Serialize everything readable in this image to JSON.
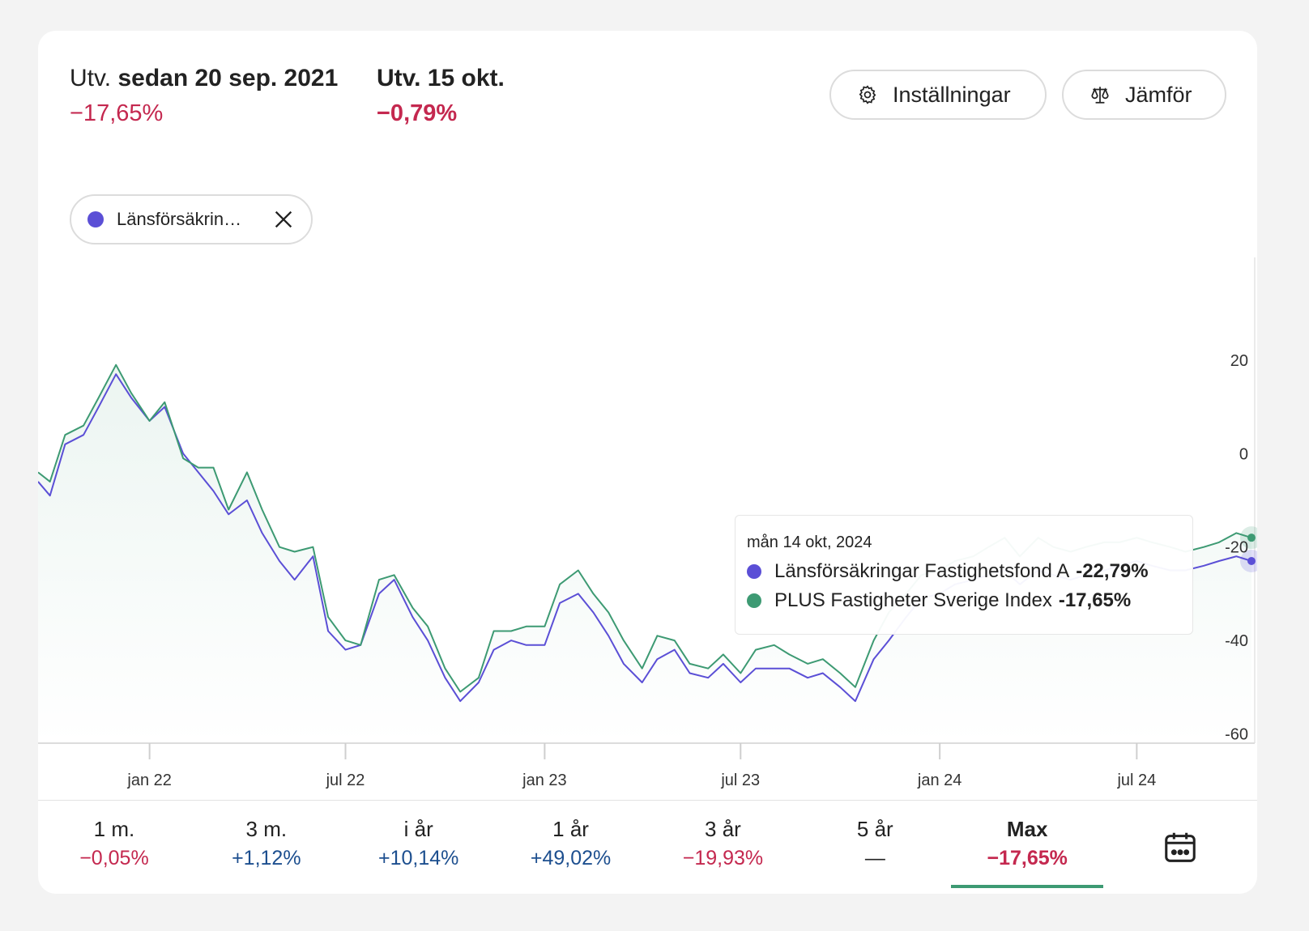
{
  "header": {
    "since_prefix": "Utv.",
    "since_date": "sedan 20 sep. 2021",
    "since_value": "−17,65%",
    "day_label": "Utv. 15 okt.",
    "day_value": "−0,79%"
  },
  "buttons": {
    "settings": "Inställningar",
    "compare": "Jämför"
  },
  "chip": {
    "label": "Länsförsäkrin…",
    "color": "#5b4fd6"
  },
  "tooltip": {
    "date": "mån 14 okt, 2024",
    "rows": [
      {
        "name": "Länsförsäkringar Fastighetsfond A",
        "value": "-22,79%",
        "color": "#5b4fd6"
      },
      {
        "name": "PLUS Fastigheter Sverige Index",
        "value": "-17,65%",
        "color": "#3d9a73"
      }
    ]
  },
  "chart_data": {
    "type": "line",
    "x_tick_labels": [
      "jan 22",
      "jul 22",
      "jan 23",
      "jul 23",
      "jan 24",
      "jul 24"
    ],
    "y_ticks": [
      20,
      0,
      -20,
      -40,
      -60
    ],
    "ylim": [
      -62,
      42
    ],
    "x": [
      "2021-09-20",
      "2021-10-01",
      "2021-10-15",
      "2021-11-01",
      "2021-11-15",
      "2021-12-01",
      "2021-12-15",
      "2022-01-01",
      "2022-01-15",
      "2022-02-01",
      "2022-02-15",
      "2022-03-01",
      "2022-03-15",
      "2022-04-01",
      "2022-04-15",
      "2022-05-01",
      "2022-05-15",
      "2022-06-01",
      "2022-06-15",
      "2022-07-01",
      "2022-07-15",
      "2022-08-01",
      "2022-08-15",
      "2022-09-01",
      "2022-09-15",
      "2022-10-01",
      "2022-10-15",
      "2022-11-01",
      "2022-11-15",
      "2022-12-01",
      "2022-12-15",
      "2023-01-01",
      "2023-01-15",
      "2023-02-01",
      "2023-02-15",
      "2023-03-01",
      "2023-03-15",
      "2023-04-01",
      "2023-04-15",
      "2023-05-01",
      "2023-05-15",
      "2023-06-01",
      "2023-06-15",
      "2023-07-01",
      "2023-07-15",
      "2023-08-01",
      "2023-08-15",
      "2023-09-01",
      "2023-09-15",
      "2023-10-01",
      "2023-10-15",
      "2023-11-01",
      "2023-11-15",
      "2023-12-01",
      "2023-12-15",
      "2024-01-01",
      "2024-01-15",
      "2024-02-01",
      "2024-02-15",
      "2024-03-01",
      "2024-03-15",
      "2024-04-01",
      "2024-04-15",
      "2024-05-01",
      "2024-05-15",
      "2024-06-01",
      "2024-06-15",
      "2024-07-01",
      "2024-07-15",
      "2024-08-01",
      "2024-08-15",
      "2024-09-01",
      "2024-09-15",
      "2024-10-01",
      "2024-10-15"
    ],
    "series": [
      {
        "name": "Länsförsäkringar Fastighetsfond A",
        "color": "#5b4fd6",
        "values": [
          -6,
          -9,
          2,
          4,
          10,
          17,
          12,
          7,
          10,
          0,
          -4,
          -8,
          -13,
          -10,
          -17,
          -23,
          -27,
          -22,
          -38,
          -42,
          -41,
          -30,
          -27,
          -35,
          -40,
          -48,
          -53,
          -49,
          -42,
          -40,
          -41,
          -41,
          -32,
          -30,
          -34,
          -39,
          -45,
          -49,
          -44,
          -42,
          -47,
          -48,
          -45,
          -49,
          -46,
          -46,
          -46,
          -48,
          -47,
          -50,
          -53,
          -44,
          -40,
          -35,
          -31,
          -30,
          -28,
          -27,
          -26,
          -25,
          -28,
          -25,
          -26,
          -27,
          -26,
          -25,
          -24,
          -23,
          -24,
          -25,
          -25,
          -24,
          -23,
          -22,
          -23
        ]
      },
      {
        "name": "PLUS Fastigheter Sverige Index",
        "color": "#3d9a73",
        "values": [
          -4,
          -6,
          4,
          6,
          12,
          19,
          13,
          7,
          11,
          -1,
          -3,
          -3,
          -12,
          -4,
          -12,
          -20,
          -21,
          -20,
          -35,
          -40,
          -41,
          -27,
          -26,
          -33,
          -37,
          -46,
          -51,
          -48,
          -38,
          -38,
          -37,
          -37,
          -28,
          -25,
          -30,
          -34,
          -40,
          -46,
          -39,
          -40,
          -45,
          -46,
          -43,
          -47,
          -42,
          -41,
          -43,
          -45,
          -44,
          -47,
          -50,
          -40,
          -34,
          -30,
          -26,
          -25,
          -23,
          -22,
          -20,
          -18,
          -22,
          -18,
          -20,
          -21,
          -20,
          -19,
          -19,
          -18,
          -19,
          -20,
          -21,
          -20,
          -19,
          -17,
          -18
        ]
      }
    ]
  },
  "periods": [
    {
      "label": "1 m.",
      "value": "−0,05%",
      "sign": "neg"
    },
    {
      "label": "3 m.",
      "value": "+1,12%",
      "sign": "pos"
    },
    {
      "label": "i år",
      "value": "+10,14%",
      "sign": "pos"
    },
    {
      "label": "1 år",
      "value": "+49,02%",
      "sign": "pos"
    },
    {
      "label": "3 år",
      "value": "−19,93%",
      "sign": "neg"
    },
    {
      "label": "5 år",
      "value": "—",
      "sign": "none"
    },
    {
      "label": "Max",
      "value": "−17,65%",
      "sign": "neg",
      "active": true
    }
  ],
  "icons": {
    "settings": "gear-icon",
    "compare": "scale-icon",
    "chip_close": "close-icon",
    "calendar": "calendar-icon"
  }
}
